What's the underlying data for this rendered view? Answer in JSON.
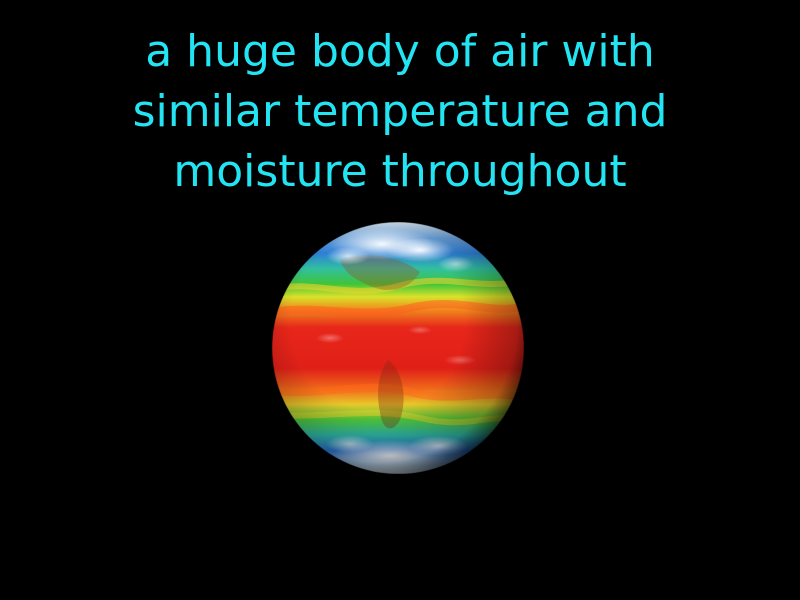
{
  "definition": {
    "lines": [
      "a huge body of air with",
      "similar temperature and",
      "moisture throughout"
    ],
    "color": "#22e4f2"
  },
  "illustration": {
    "icon": "earth-temperature-globe-icon",
    "colors": {
      "background": "#000000",
      "hot": "#e8261a",
      "warm": "#f08a1c",
      "mild": "#e8e22a",
      "cool": "#3fc43a",
      "cold": "#1f6fd8",
      "clouds": "#eef3f6"
    }
  }
}
